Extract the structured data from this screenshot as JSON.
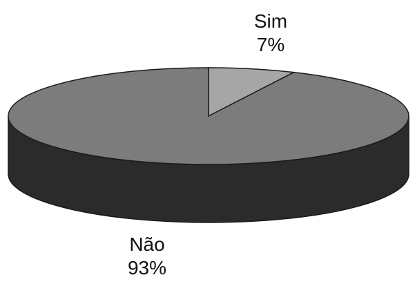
{
  "chart_data": {
    "type": "pie",
    "style": "3d",
    "categories": [
      "Sim",
      "Não"
    ],
    "values": [
      7,
      93
    ],
    "labels": [
      {
        "name": "Sim",
        "percent": "7%"
      },
      {
        "name": "Não",
        "percent": "93%"
      }
    ],
    "colors": {
      "Sim": "#a6a6a6",
      "Não": "#7c7c7c",
      "side": "#2b2b2b",
      "edge": "#1a1a1a"
    }
  }
}
